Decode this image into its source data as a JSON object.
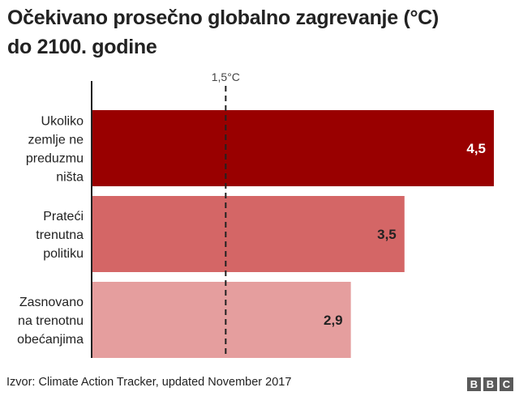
{
  "header": {
    "title_line1": "Očekivano prosečno globalno zagrevanje (°C)",
    "title_line2": "do 2100. godine"
  },
  "chart_data": {
    "type": "bar",
    "orientation": "horizontal",
    "title": "Očekivano prosečno globalno zagrevanje (°C) do 2100. godine",
    "categories": [
      [
        "Ukoliko",
        "zemlje ne",
        "preduzmu",
        "ništa"
      ],
      [
        "Prateći",
        "trenutna",
        "politiku"
      ],
      [
        "Zasnovano",
        "na trenotnu",
        "obećanjima"
      ]
    ],
    "values": [
      4.5,
      3.5,
      2.9
    ],
    "value_labels": [
      "4,5",
      "3,5",
      "2,9"
    ],
    "colors": [
      "#990000",
      "#d46666",
      "#e59e9e"
    ],
    "value_label_colors": [
      "#ffffff",
      "#222222",
      "#222222"
    ],
    "reference_line": {
      "value": 1.5,
      "label": "1,5°C"
    },
    "xlim": [
      0,
      4.6
    ],
    "xlabel": "",
    "ylabel": "",
    "grid": false
  },
  "footer": {
    "source": "Izvor: Climate Action Tracker, updated November 2017",
    "logo": [
      "B",
      "B",
      "C"
    ]
  }
}
